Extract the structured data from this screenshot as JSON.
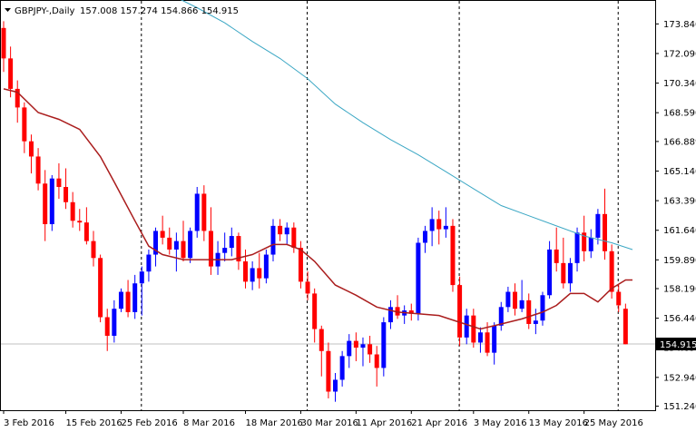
{
  "header": {
    "symbol": "GBPJPY-,Daily",
    "ohlc": "157.008 157.274 154.866 154.915"
  },
  "chart_data": {
    "type": "candlestick",
    "ylim": [
      151.0,
      175.2
    ],
    "y_ticks": [
      "173.840",
      "172.090",
      "170.340",
      "168.590",
      "166.889",
      "165.140",
      "163.390",
      "161.640",
      "159.890",
      "158.190",
      "156.440",
      "154.690",
      "152.940",
      "151.240"
    ],
    "current_price": 154.915,
    "current_price_label": "154.915",
    "x_tick_labels": [
      "3 Feb 2016",
      "15 Feb 2016",
      "25 Feb 2016",
      "8 Mar 2016",
      "18 Mar 2016",
      "30 Mar 2016",
      "11 Apr 2016",
      "21 Apr 2016",
      "3 May 2016",
      "13 May 2016",
      "25 May 2016"
    ],
    "colors": {
      "bull": "#0000ff",
      "bear": "#ff0000",
      "ma_fast": "#aa1d1d",
      "ma_slow": "#3ba7c4",
      "grid": "#000000",
      "price_line": "#c0c0c0"
    },
    "candles": [
      [
        173.6,
        174.0,
        171.0,
        171.8
      ],
      [
        171.8,
        172.5,
        169.5,
        170.0
      ],
      [
        170.0,
        170.5,
        168.0,
        168.9
      ],
      [
        168.9,
        169.2,
        166.2,
        166.9
      ],
      [
        166.9,
        167.3,
        165.0,
        166.0
      ],
      [
        166.0,
        166.5,
        164.0,
        164.4
      ],
      [
        164.4,
        165.2,
        161.0,
        162.0
      ],
      [
        162.0,
        164.9,
        161.6,
        164.7
      ],
      [
        164.7,
        165.6,
        163.5,
        164.2
      ],
      [
        164.2,
        165.3,
        162.9,
        163.3
      ],
      [
        163.3,
        163.9,
        161.8,
        162.2
      ],
      [
        162.2,
        162.9,
        161.6,
        162.1
      ],
      [
        162.1,
        163.0,
        160.8,
        161.0
      ],
      [
        161.0,
        161.6,
        159.5,
        160.0
      ],
      [
        160.0,
        160.2,
        156.2,
        156.5
      ],
      [
        156.5,
        157.0,
        154.5,
        155.4
      ],
      [
        155.4,
        157.5,
        155.0,
        157.0
      ],
      [
        157.0,
        158.2,
        156.8,
        158.0
      ],
      [
        158.0,
        158.7,
        156.5,
        156.8
      ],
      [
        156.8,
        159.0,
        156.4,
        158.5
      ],
      [
        158.5,
        159.5,
        156.6,
        159.2
      ],
      [
        159.2,
        160.5,
        158.6,
        160.2
      ],
      [
        160.2,
        161.8,
        159.5,
        161.6
      ],
      [
        161.6,
        162.5,
        160.8,
        161.2
      ],
      [
        161.2,
        161.8,
        160.2,
        160.5
      ],
      [
        160.5,
        161.5,
        159.2,
        161.0
      ],
      [
        161.0,
        162.2,
        159.8,
        160.0
      ],
      [
        160.0,
        161.8,
        159.7,
        161.6
      ],
      [
        161.6,
        164.2,
        161.2,
        163.8
      ],
      [
        163.8,
        164.3,
        161.0,
        161.6
      ],
      [
        161.6,
        163.0,
        159.0,
        159.5
      ],
      [
        159.5,
        161.0,
        159.0,
        160.3
      ],
      [
        160.3,
        161.5,
        159.8,
        160.6
      ],
      [
        160.6,
        161.8,
        160.1,
        161.3
      ],
      [
        161.3,
        161.5,
        159.3,
        159.8
      ],
      [
        159.8,
        160.5,
        158.2,
        158.6
      ],
      [
        158.6,
        159.8,
        158.1,
        159.4
      ],
      [
        159.4,
        160.3,
        158.2,
        158.8
      ],
      [
        158.8,
        160.5,
        158.5,
        160.2
      ],
      [
        160.2,
        162.3,
        159.8,
        161.9
      ],
      [
        161.9,
        162.3,
        161.0,
        161.4
      ],
      [
        161.4,
        162.1,
        160.8,
        161.8
      ],
      [
        161.8,
        162.1,
        160.3,
        160.6
      ],
      [
        160.6,
        161.0,
        158.2,
        158.6
      ],
      [
        158.6,
        159.2,
        157.5,
        157.9
      ],
      [
        157.9,
        158.2,
        155.0,
        155.8
      ],
      [
        155.8,
        156.0,
        153.0,
        154.5
      ],
      [
        154.5,
        155.0,
        151.7,
        152.1
      ],
      [
        152.1,
        153.2,
        151.5,
        152.8
      ],
      [
        152.8,
        154.5,
        152.4,
        154.2
      ],
      [
        154.2,
        155.5,
        153.5,
        155.1
      ],
      [
        155.1,
        155.6,
        153.9,
        154.7
      ],
      [
        154.7,
        155.3,
        153.6,
        154.9
      ],
      [
        154.9,
        155.4,
        153.8,
        154.3
      ],
      [
        154.3,
        154.8,
        152.4,
        153.5
      ],
      [
        153.5,
        156.5,
        153.0,
        156.2
      ],
      [
        156.2,
        157.5,
        155.8,
        157.1
      ],
      [
        157.1,
        157.8,
        156.4,
        156.6
      ],
      [
        156.6,
        157.2,
        156.1,
        156.9
      ],
      [
        156.9,
        157.3,
        156.3,
        156.7
      ],
      [
        156.7,
        161.2,
        156.3,
        160.9
      ],
      [
        160.9,
        161.9,
        160.3,
        161.6
      ],
      [
        161.6,
        163.0,
        160.7,
        162.3
      ],
      [
        162.3,
        162.8,
        160.8,
        161.7
      ],
      [
        161.7,
        163.0,
        161.2,
        161.9
      ],
      [
        161.9,
        162.3,
        158.0,
        158.4
      ],
      [
        158.4,
        158.9,
        154.8,
        155.3
      ],
      [
        155.3,
        157.0,
        154.9,
        156.6
      ],
      [
        156.6,
        157.0,
        154.7,
        155.0
      ],
      [
        155.0,
        155.9,
        154.4,
        155.6
      ],
      [
        155.6,
        156.2,
        154.2,
        154.4
      ],
      [
        154.4,
        156.2,
        153.7,
        156.0
      ],
      [
        156.0,
        157.4,
        155.7,
        157.1
      ],
      [
        157.1,
        158.3,
        156.8,
        158.0
      ],
      [
        158.0,
        158.5,
        156.6,
        157.0
      ],
      [
        157.0,
        158.7,
        156.8,
        157.5
      ],
      [
        157.5,
        157.9,
        155.8,
        156.1
      ],
      [
        156.1,
        157.0,
        155.5,
        156.3
      ],
      [
        156.3,
        158.0,
        156.0,
        157.8
      ],
      [
        157.8,
        161.0,
        157.6,
        160.5
      ],
      [
        160.5,
        161.8,
        159.2,
        159.7
      ],
      [
        159.7,
        161.2,
        158.2,
        158.5
      ],
      [
        158.5,
        160.0,
        158.0,
        159.7
      ],
      [
        159.7,
        161.8,
        159.2,
        161.5
      ],
      [
        161.5,
        162.5,
        159.8,
        160.4
      ],
      [
        160.4,
        161.7,
        160.0,
        161.2
      ],
      [
        161.2,
        162.9,
        160.8,
        162.6
      ],
      [
        162.6,
        164.1,
        159.9,
        160.4
      ],
      [
        160.4,
        160.8,
        157.6,
        158.0
      ],
      [
        158.0,
        158.4,
        156.8,
        157.2
      ],
      [
        157.0,
        157.3,
        154.9,
        154.9
      ]
    ],
    "ma_fast": [
      [
        0,
        170.0
      ],
      [
        2,
        169.8
      ],
      [
        5,
        168.6
      ],
      [
        8,
        168.2
      ],
      [
        11,
        167.6
      ],
      [
        14,
        166.0
      ],
      [
        16,
        164.5
      ],
      [
        19,
        162.2
      ],
      [
        21,
        160.7
      ],
      [
        23,
        160.2
      ],
      [
        26,
        159.9
      ],
      [
        30,
        159.9
      ],
      [
        33,
        159.9
      ],
      [
        36,
        160.2
      ],
      [
        39,
        160.8
      ],
      [
        41,
        160.8
      ],
      [
        43,
        160.5
      ],
      [
        45,
        159.8
      ],
      [
        48,
        158.4
      ],
      [
        51,
        157.8
      ],
      [
        54,
        157.1
      ],
      [
        57,
        156.8
      ],
      [
        60,
        156.7
      ],
      [
        63,
        156.6
      ],
      [
        66,
        156.2
      ],
      [
        69,
        155.8
      ],
      [
        72,
        156.1
      ],
      [
        75,
        156.4
      ],
      [
        78,
        156.8
      ],
      [
        80,
        157.2
      ],
      [
        82,
        157.9
      ],
      [
        84,
        157.9
      ],
      [
        86,
        157.4
      ],
      [
        88,
        158.2
      ],
      [
        90,
        158.7
      ],
      [
        91,
        158.7
      ]
    ],
    "ma_slow": [
      [
        20,
        176.5
      ],
      [
        24,
        175.6
      ],
      [
        28,
        174.8
      ],
      [
        32,
        173.9
      ],
      [
        36,
        172.8
      ],
      [
        40,
        171.8
      ],
      [
        44,
        170.6
      ],
      [
        48,
        169.1
      ],
      [
        52,
        168.0
      ],
      [
        56,
        167.0
      ],
      [
        60,
        166.1
      ],
      [
        64,
        165.1
      ],
      [
        68,
        164.1
      ],
      [
        72,
        163.1
      ],
      [
        76,
        162.5
      ],
      [
        80,
        161.9
      ],
      [
        84,
        161.3
      ],
      [
        88,
        160.9
      ],
      [
        91,
        160.5
      ]
    ]
  }
}
